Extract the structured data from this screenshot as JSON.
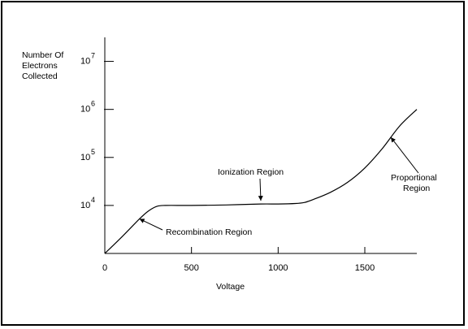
{
  "chart_data": {
    "type": "line",
    "title": "",
    "xlabel": "Voltage",
    "ylabel": [
      "Number Of",
      "Electrons",
      "Collected"
    ],
    "xlim": [
      0,
      1800
    ],
    "ylim_log10": [
      3,
      7.5
    ],
    "log_y": true,
    "grid": false,
    "x_ticks": [
      0,
      500,
      1000,
      1500
    ],
    "y_ticks": [
      {
        "base": "10",
        "exp": "4",
        "log": 4
      },
      {
        "base": "10",
        "exp": "5",
        "log": 5
      },
      {
        "base": "10",
        "exp": "6",
        "log": 6
      },
      {
        "base": "10",
        "exp": "7",
        "log": 7
      }
    ],
    "series": [
      {
        "points": [
          [
            0,
            3.0
          ],
          [
            100,
            3.35
          ],
          [
            200,
            3.72
          ],
          [
            250,
            3.88
          ],
          [
            300,
            3.98
          ],
          [
            350,
            4.0
          ],
          [
            500,
            4.0
          ],
          [
            700,
            4.01
          ],
          [
            900,
            4.03
          ],
          [
            1000,
            4.03
          ],
          [
            1100,
            4.04
          ],
          [
            1150,
            4.06
          ],
          [
            1200,
            4.12
          ],
          [
            1300,
            4.27
          ],
          [
            1400,
            4.48
          ],
          [
            1500,
            4.78
          ],
          [
            1600,
            5.18
          ],
          [
            1700,
            5.65
          ],
          [
            1800,
            6.0
          ]
        ]
      }
    ],
    "annotations": [
      {
        "text": "Ionization Region",
        "lines": [
          "Ionization Region"
        ],
        "point": [
          900,
          4.03
        ]
      },
      {
        "text": "Recombination Region",
        "lines": [
          "Recombination Region"
        ],
        "point": [
          200,
          3.72
        ]
      },
      {
        "text": "Proportional Region",
        "lines": [
          "Proportional",
          "Region"
        ],
        "point": [
          1650,
          5.42
        ]
      }
    ]
  }
}
